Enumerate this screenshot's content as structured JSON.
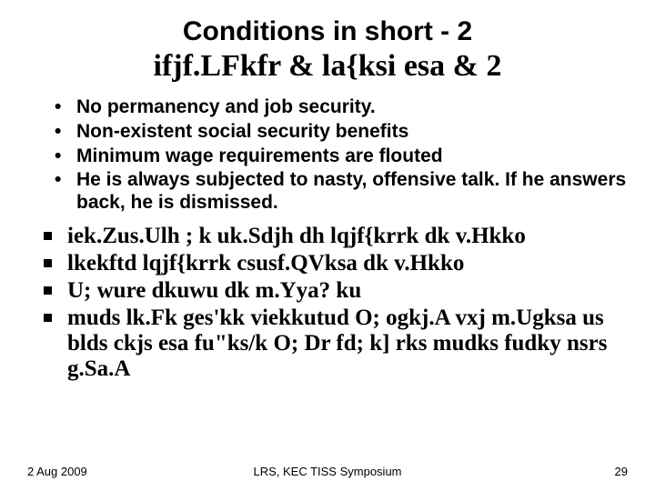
{
  "colors": {
    "background": "#ffffff",
    "text": "#000000"
  },
  "title": {
    "line1": "Conditions in short - 2",
    "line2": "ifjf.LFkfr & la{ksi esa & 2"
  },
  "bullets_disc": [
    "No permanency and job security.",
    "Non-existent social security benefits",
    "Minimum wage requirements are flouted",
    "He is always subjected to nasty, offensive talk. If he answers back, he is dismissed."
  ],
  "bullets_square": [
    "iek.Zus.Ulh ; k uk.Sdjh dh lqjf{krrk dk v.Hkko",
    "lkekftd lqjf{krrk csusf.QVksa dk v.Hkko",
    "U; wure dkuwu dk m.Yya? ku",
    "muds lk.Fk ges'kk viekkutud O; ogkj.A vxj m.Ugksa us blds ckjs esa fu\"ks/k O; Dr fd; k] rks mudks fudky nsrs g.Sa.A"
  ],
  "footer": {
    "date": "2 Aug 2009",
    "venue": "LRS, KEC TISS Symposium",
    "page": "29"
  },
  "typography": {
    "title1_fontsize": 30,
    "title2_fontsize": 34,
    "disc_fontsize": 21,
    "square_fontsize": 25,
    "footer_fontsize": 13
  }
}
